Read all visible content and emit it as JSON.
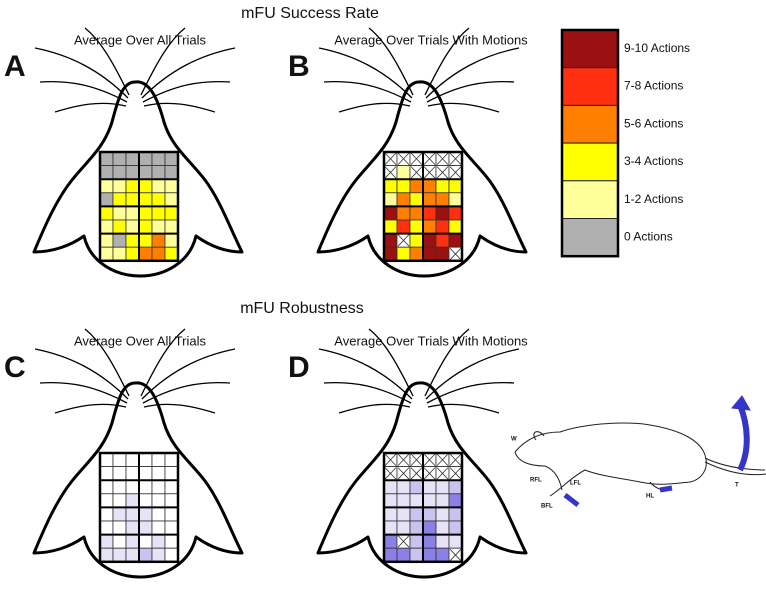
{
  "header": {
    "title_top": "mFU Success Rate",
    "title_bottom": "mFU Robustness"
  },
  "legend": {
    "labels": [
      "9-10 Actions",
      "7-8 Actions",
      "5-6 Actions",
      "3-4 Actions",
      "1-2 Actions",
      "0 Actions"
    ],
    "colors": [
      "#9b1010",
      "#ff3010",
      "#ff8000",
      "#ffff00",
      "#ffff99",
      "#b0b0b0"
    ]
  },
  "success_levels": [
    "#b0b0b0",
    "#ffff99",
    "#ffff00",
    "#ff8000",
    "#ff3010",
    "#9b1010"
  ],
  "robust_levels": [
    "#ffffff",
    "#e6e3f7",
    "#c9c3f0",
    "#8a80e6",
    "#4b3fd6"
  ],
  "panels": [
    {
      "letter": "A",
      "subtitle": "Average Over All Trials",
      "palette": "success_levels",
      "grid": [
        [
          0,
          0,
          0,
          0,
          0,
          0
        ],
        [
          0,
          0,
          0,
          0,
          0,
          0
        ],
        [
          1,
          1,
          2,
          2,
          1,
          1
        ],
        [
          0,
          2,
          2,
          2,
          2,
          1
        ],
        [
          2,
          1,
          1,
          2,
          2,
          2
        ],
        [
          1,
          2,
          1,
          2,
          1,
          1
        ],
        [
          1,
          0,
          2,
          2,
          3,
          1
        ],
        [
          1,
          1,
          2,
          3,
          3,
          2
        ]
      ]
    },
    {
      "letter": "B",
      "subtitle": "Average Over Trials With Motions",
      "palette": "success_levels",
      "grid": [
        [
          null,
          null,
          null,
          null,
          null,
          null
        ],
        [
          null,
          1,
          null,
          null,
          null,
          null
        ],
        [
          2,
          2,
          3,
          3,
          2,
          2
        ],
        [
          1,
          3,
          2,
          3,
          3,
          1
        ],
        [
          5,
          3,
          3,
          4,
          5,
          4
        ],
        [
          2,
          4,
          2,
          3,
          4,
          2
        ],
        [
          5,
          null,
          2,
          5,
          4,
          5
        ],
        [
          5,
          2,
          3,
          5,
          5,
          null
        ]
      ]
    },
    {
      "letter": "C",
      "subtitle": "Average Over All Trials",
      "palette": "robust_levels",
      "grid": [
        [
          0,
          0,
          0,
          0,
          0,
          0
        ],
        [
          0,
          0,
          0,
          0,
          0,
          0
        ],
        [
          0,
          0,
          0,
          0,
          0,
          0
        ],
        [
          0,
          0,
          1,
          0,
          0,
          0
        ],
        [
          0,
          1,
          1,
          1,
          0,
          0
        ],
        [
          0,
          0,
          1,
          1,
          0,
          0
        ],
        [
          1,
          0,
          1,
          0,
          1,
          0
        ],
        [
          1,
          1,
          1,
          2,
          1,
          0
        ]
      ]
    },
    {
      "letter": "D",
      "subtitle": "Average Over Trials With Motions",
      "palette": "robust_levels",
      "grid": [
        [
          null,
          null,
          null,
          null,
          null,
          null
        ],
        [
          null,
          null,
          null,
          null,
          null,
          null
        ],
        [
          1,
          1,
          2,
          1,
          1,
          2
        ],
        [
          1,
          1,
          1,
          1,
          1,
          3
        ],
        [
          1,
          1,
          2,
          2,
          1,
          2
        ],
        [
          1,
          1,
          2,
          3,
          1,
          2
        ],
        [
          3,
          null,
          2,
          3,
          1,
          1
        ],
        [
          3,
          3,
          2,
          3,
          3,
          null
        ]
      ]
    }
  ],
  "rat_labels": [
    "W",
    "RFL",
    "LFL",
    "BFL",
    "HL",
    "T"
  ]
}
